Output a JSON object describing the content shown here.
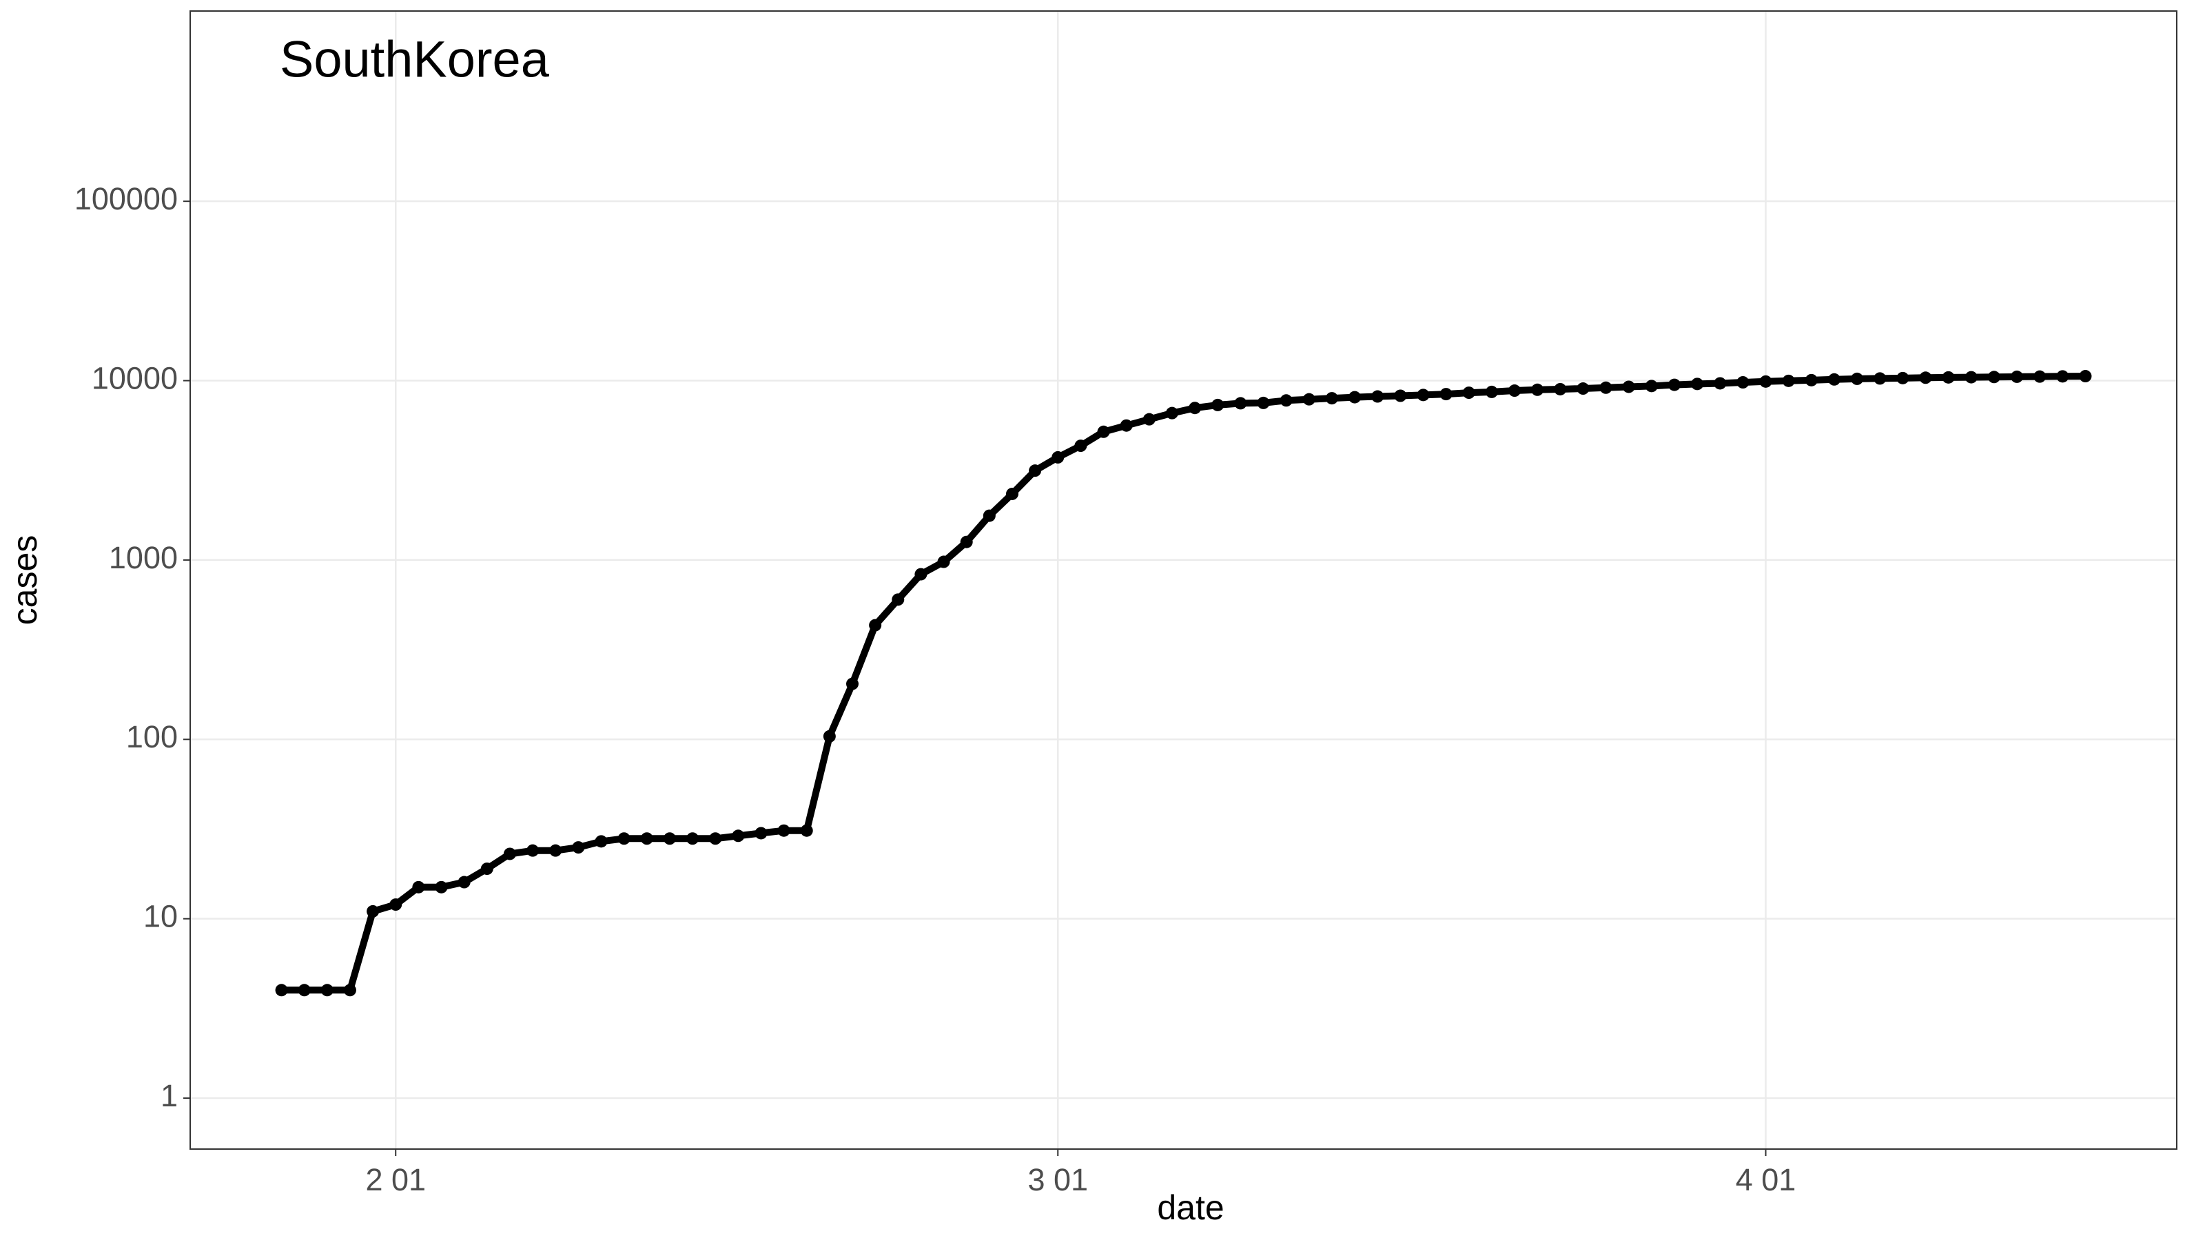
{
  "chart_data": {
    "type": "line",
    "title": "SouthKorea",
    "x_label": "date",
    "y_label": "cases",
    "log_y": true,
    "grid": true,
    "color": "#000000",
    "x": [
      "01-27",
      "01-28",
      "01-29",
      "01-30",
      "01-31",
      "02-01",
      "02-02",
      "02-03",
      "02-04",
      "02-05",
      "02-06",
      "02-07",
      "02-08",
      "02-09",
      "02-10",
      "02-11",
      "02-12",
      "02-13",
      "02-14",
      "02-15",
      "02-16",
      "02-17",
      "02-18",
      "02-19",
      "02-20",
      "02-21",
      "02-22",
      "02-23",
      "02-24",
      "02-25",
      "02-26",
      "02-27",
      "02-28",
      "02-29",
      "03-01",
      "03-02",
      "03-03",
      "03-04",
      "03-05",
      "03-06",
      "03-07",
      "03-08",
      "03-09",
      "03-10",
      "03-11",
      "03-12",
      "03-13",
      "03-14",
      "03-15",
      "03-16",
      "03-17",
      "03-18",
      "03-19",
      "03-20",
      "03-21",
      "03-22",
      "03-23",
      "03-24",
      "03-25",
      "03-26",
      "03-27",
      "03-28",
      "03-29",
      "03-30",
      "03-31",
      "04-01",
      "04-02",
      "04-03",
      "04-04",
      "04-05",
      "04-06",
      "04-07",
      "04-08",
      "04-09",
      "04-10",
      "04-11",
      "04-12",
      "04-13",
      "04-14",
      "04-15"
    ],
    "values": [
      4,
      4,
      4,
      4,
      11,
      12,
      15,
      15,
      16,
      19,
      23,
      24,
      24,
      25,
      27,
      28,
      28,
      28,
      28,
      28,
      29,
      30,
      31,
      31,
      104,
      204,
      433,
      602,
      833,
      977,
      1261,
      1766,
      2337,
      3150,
      3736,
      4335,
      5186,
      5621,
      6088,
      6593,
      7041,
      7314,
      7478,
      7513,
      7755,
      7869,
      7979,
      8086,
      8162,
      8236,
      8320,
      8413,
      8565,
      8652,
      8799,
      8897,
      8961,
      9037,
      9137,
      9241,
      9332,
      9478,
      9583,
      9661,
      9786,
      9887,
      9976,
      10062,
      10156,
      10237,
      10284,
      10331,
      10384,
      10423,
      10450,
      10480,
      10512,
      10537,
      10564,
      10591
    ],
    "xlim": [
      "01-23",
      "04-19"
    ],
    "xticks": [
      {
        "value": "02-01",
        "label": "2 01"
      },
      {
        "value": "03-01",
        "label": "3 01"
      },
      {
        "value": "04-01",
        "label": "4 01"
      }
    ],
    "ylim": [
      0.52,
      1150000
    ],
    "yticks": [
      1,
      10,
      100,
      1000,
      10000,
      100000
    ]
  }
}
